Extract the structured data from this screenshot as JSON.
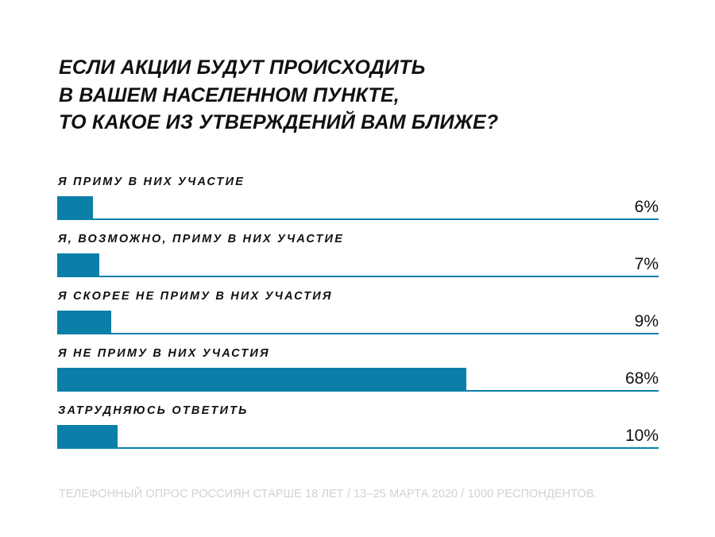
{
  "title_lines": [
    "ЕСЛИ АКЦИИ БУДУТ ПРОИСХОДИТЬ",
    "В ВАШЕМ НАСЕЛЕННОМ ПУНКТЕ,",
    "ТО КАКОЕ ИЗ УТВЕРЖДЕНИЙ ВАМ БЛИЖЕ?"
  ],
  "colors": {
    "bar": "#0b7fa8",
    "text": "#111111",
    "footnote": "#d2d2d2"
  },
  "chart_data": {
    "type": "bar",
    "orientation": "horizontal",
    "categories": [
      "Я ПРИМУ В НИХ УЧАСТИЕ",
      "Я, ВОЗМОЖНО, ПРИМУ В НИХ УЧАСТИЕ",
      "Я СКОРЕЕ НЕ ПРИМУ В НИХ УЧАСТИЯ",
      "Я НЕ ПРИМУ В НИХ УЧАСТИЯ",
      "ЗАТРУДНЯЮСЬ ОТВЕТИТЬ"
    ],
    "values": [
      6,
      7,
      9,
      68,
      10
    ],
    "value_labels": [
      "6%",
      "7%",
      "9%",
      "68%",
      "10%"
    ],
    "xlim": [
      0,
      100
    ],
    "grid": false,
    "legend": false
  },
  "footnote": "ТЕЛЕФОННЫЙ ОПРОС РОССИЯН СТАРШЕ 18 ЛЕТ / 13–25 МАРТА 2020 / 1000 РЕСПОНДЕНТОВ."
}
